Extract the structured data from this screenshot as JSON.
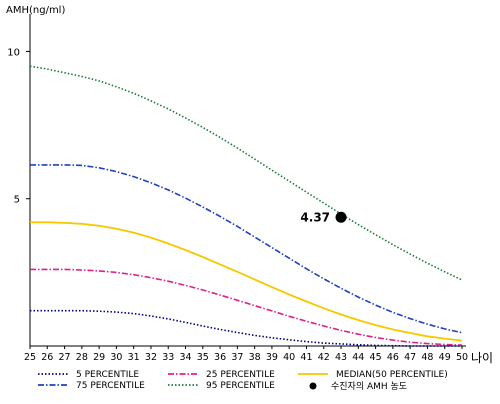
{
  "chart_data": {
    "type": "line",
    "ylabel": "AMH(ng/ml)",
    "xlabel": "나이",
    "xlim": [
      25,
      50
    ],
    "ylim": [
      0,
      11
    ],
    "x": [
      25,
      26,
      27,
      28,
      29,
      30,
      31,
      32,
      33,
      34,
      35,
      36,
      37,
      38,
      39,
      40,
      41,
      42,
      43,
      44,
      45,
      46,
      47,
      48,
      49,
      50
    ],
    "x_tick_labels": [
      "25",
      "26",
      "27",
      "28",
      "29",
      "30",
      "31",
      "32",
      "33",
      "34",
      "35",
      "36",
      "37",
      "38",
      "39",
      "40",
      "41",
      "42",
      "43",
      "44",
      "45",
      "46",
      "47",
      "48",
      "49",
      "50"
    ],
    "y_ticks": [
      5,
      10
    ],
    "y_tick_labels": [
      "5",
      "10"
    ],
    "legend_position": "bottom",
    "series": [
      {
        "name": "5 PERCENTILE",
        "color": "#000080",
        "dash": "dot",
        "values": [
          1.2,
          1.2,
          1.2,
          1.2,
          1.18,
          1.15,
          1.1,
          1.02,
          0.92,
          0.8,
          0.68,
          0.56,
          0.46,
          0.36,
          0.28,
          0.21,
          0.15,
          0.1,
          0.07,
          0.04,
          0.02,
          0.01,
          0.0,
          0.0,
          0.0,
          0.0
        ]
      },
      {
        "name": "25 PERCENTILE",
        "color": "#e0208a",
        "dash": "dashdot",
        "values": [
          2.6,
          2.6,
          2.6,
          2.58,
          2.55,
          2.5,
          2.42,
          2.32,
          2.2,
          2.06,
          1.9,
          1.73,
          1.55,
          1.37,
          1.19,
          1.01,
          0.84,
          0.68,
          0.53,
          0.4,
          0.29,
          0.2,
          0.13,
          0.08,
          0.05,
          0.03
        ]
      },
      {
        "name": "MEDIAN(50 PERCENTILE)",
        "color": "#f5c800",
        "dash": "solid",
        "values": [
          4.2,
          4.2,
          4.18,
          4.15,
          4.08,
          3.98,
          3.85,
          3.68,
          3.48,
          3.26,
          3.02,
          2.77,
          2.52,
          2.26,
          2.0,
          1.75,
          1.51,
          1.28,
          1.07,
          0.88,
          0.71,
          0.56,
          0.44,
          0.33,
          0.25,
          0.18
        ]
      },
      {
        "name": "75 PERCENTILE",
        "color": "#2040c0",
        "dash": "dashdot",
        "values": [
          6.15,
          6.15,
          6.15,
          6.13,
          6.05,
          5.92,
          5.75,
          5.54,
          5.3,
          5.02,
          4.72,
          4.4,
          4.06,
          3.7,
          3.34,
          2.98,
          2.62,
          2.28,
          1.96,
          1.66,
          1.39,
          1.14,
          0.93,
          0.74,
          0.58,
          0.45
        ]
      },
      {
        "name": "95 PERCENTILE",
        "color": "#1a7a3a",
        "dash": "dot",
        "values": [
          9.5,
          9.4,
          9.28,
          9.15,
          9.0,
          8.8,
          8.58,
          8.32,
          8.05,
          7.74,
          7.42,
          7.08,
          6.72,
          6.35,
          5.97,
          5.6,
          5.22,
          4.85,
          4.48,
          4.12,
          3.78,
          3.44,
          3.12,
          2.81,
          2.52,
          2.24
        ]
      }
    ],
    "highlight": {
      "name": "수진자의 AMH 농도",
      "x": 43,
      "y": 4.37,
      "label": "4.37",
      "color": "#000000"
    }
  }
}
